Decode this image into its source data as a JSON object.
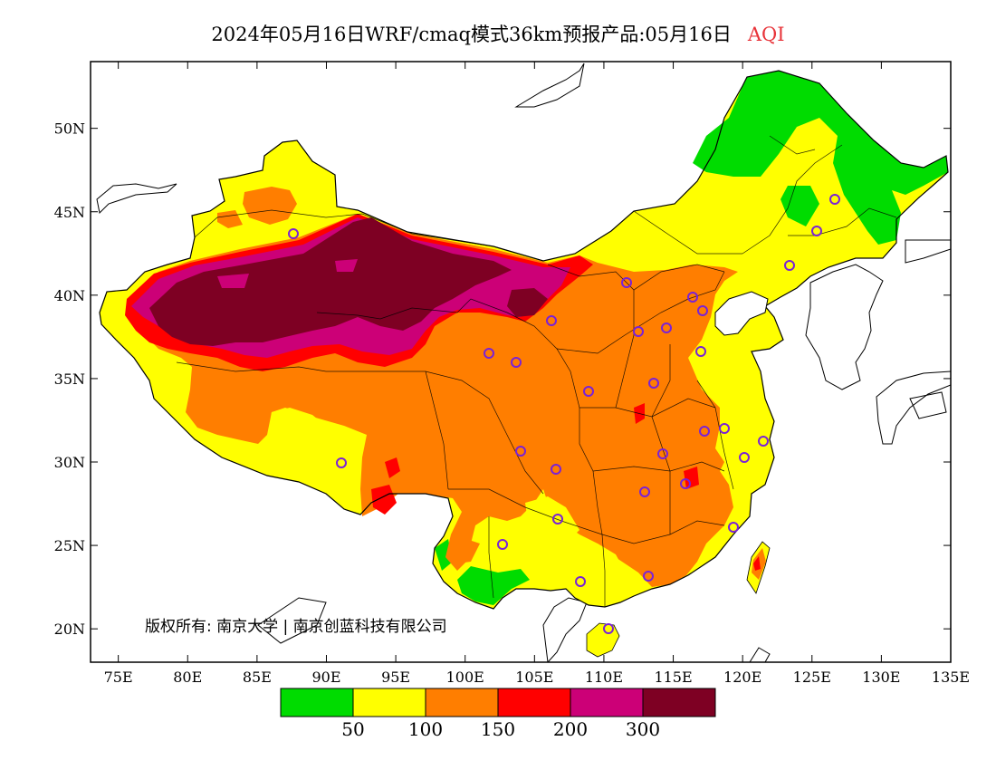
{
  "title": {
    "text": "2024年05月16日WRF/cmaq模式36km预报产品:05月16日",
    "variable": "AQI"
  },
  "colors": {
    "variable_label": "#e8343a",
    "aqi_0_50": "#00dc00",
    "aqi_50_100": "#ffff00",
    "aqi_100_150": "#ff7e00",
    "aqi_150_200": "#ff0000",
    "aqi_200_300": "#cc0077",
    "aqi_300_plus": "#7e0023",
    "station_marker": "#7a22d6"
  },
  "map": {
    "lon_range": [
      73,
      135
    ],
    "lat_range": [
      18,
      54
    ],
    "lon_ticks": [
      "75E",
      "80E",
      "85E",
      "90E",
      "95E",
      "100E",
      "105E",
      "110E",
      "115E",
      "120E",
      "125E",
      "130E",
      "135E"
    ],
    "lat_ticks": [
      "20N",
      "25N",
      "30N",
      "35N",
      "40N",
      "45N",
      "50N"
    ],
    "copyright": "版权所有: 南京大学 | 南京创蓝科技有限公司"
  },
  "legend": {
    "thresholds": [
      "50",
      "100",
      "150",
      "200",
      "300"
    ]
  }
}
